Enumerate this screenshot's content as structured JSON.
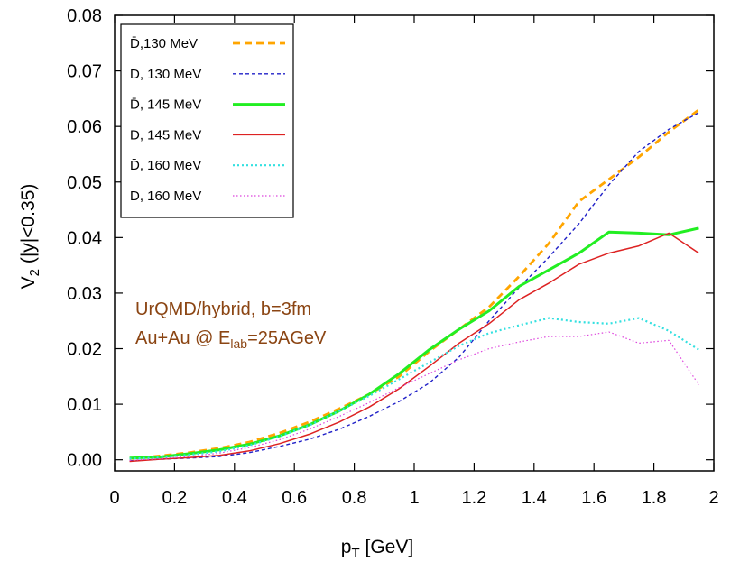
{
  "chart_data": {
    "type": "line",
    "title": "",
    "xlabel": "p",
    "xlabel_sub": "T",
    "xlabel_unit": " [GeV]",
    "ylabel": "V",
    "ylabel_sub": "2",
    "ylabel_rest": " (|y|<0.35)",
    "xlim": [
      0,
      2
    ],
    "ylim": [
      -0.002,
      0.08
    ],
    "xticks": [
      0,
      0.2,
      0.4,
      0.6,
      0.8,
      1,
      1.2,
      1.4,
      1.6,
      1.8,
      2
    ],
    "xtick_labels": [
      "0",
      "0.2",
      "0.4",
      "0.6",
      "0.8",
      "1",
      "1.2",
      "1.4",
      "1.6",
      "1.8",
      "2"
    ],
    "yticks": [
      0,
      0.01,
      0.02,
      0.03,
      0.04,
      0.05,
      0.06,
      0.07,
      0.08
    ],
    "ytick_labels": [
      "0.00",
      "0.01",
      "0.02",
      "0.03",
      "0.04",
      "0.05",
      "0.06",
      "0.07",
      "0.08"
    ],
    "grid": false,
    "legend_position": "top-left",
    "annotation": {
      "line1": "UrQMD/hybrid, b=3fm",
      "line2_prefix": "Au+Au @ E",
      "line2_sub": "lab",
      "line2_suffix": "=25AGeV",
      "color": "#8b4513"
    },
    "series": [
      {
        "name": "D̄,130 MeV",
        "color": "#ffa500",
        "width": 2.8,
        "dash": "8,5",
        "x": [
          0.05,
          0.15,
          0.25,
          0.35,
          0.45,
          0.55,
          0.65,
          0.75,
          0.85,
          0.95,
          1.05,
          1.15,
          1.25,
          1.35,
          1.45,
          1.55,
          1.65,
          1.75,
          1.85,
          1.95
        ],
        "y": [
          0.0002,
          0.0007,
          0.0013,
          0.0021,
          0.0032,
          0.0048,
          0.0068,
          0.0092,
          0.0118,
          0.015,
          0.0195,
          0.0235,
          0.0275,
          0.033,
          0.039,
          0.0465,
          0.0505,
          0.0545,
          0.059,
          0.063
        ]
      },
      {
        "name": "D, 130 MeV",
        "color": "#2020c8",
        "width": 1.4,
        "dash": "4,3",
        "x": [
          0.05,
          0.15,
          0.25,
          0.35,
          0.45,
          0.55,
          0.65,
          0.75,
          0.85,
          0.95,
          1.05,
          1.15,
          1.25,
          1.35,
          1.45,
          1.55,
          1.65,
          1.75,
          1.85,
          1.95
        ],
        "y": [
          -0.0002,
          0.0001,
          0.0003,
          0.0006,
          0.0013,
          0.0024,
          0.0037,
          0.0055,
          0.0078,
          0.0105,
          0.0138,
          0.0185,
          0.025,
          0.031,
          0.0365,
          0.0425,
          0.0495,
          0.0555,
          0.0595,
          0.0625
        ]
      },
      {
        "name": "D̄, 145 MeV",
        "color": "#22ee22",
        "width": 3.0,
        "dash": "",
        "x": [
          0.05,
          0.15,
          0.25,
          0.35,
          0.45,
          0.55,
          0.65,
          0.75,
          0.85,
          0.95,
          1.05,
          1.15,
          1.25,
          1.35,
          1.45,
          1.55,
          1.65,
          1.75,
          1.85,
          1.95
        ],
        "y": [
          0.0003,
          0.0005,
          0.0011,
          0.0018,
          0.0028,
          0.0043,
          0.0063,
          0.0088,
          0.0118,
          0.0155,
          0.0198,
          0.0235,
          0.0268,
          0.0312,
          0.0342,
          0.0372,
          0.041,
          0.0408,
          0.0405,
          0.0417
        ]
      },
      {
        "name": "D, 145 MeV",
        "color": "#dd2222",
        "width": 1.5,
        "dash": "",
        "x": [
          0.05,
          0.15,
          0.25,
          0.35,
          0.45,
          0.55,
          0.65,
          0.75,
          0.85,
          0.95,
          1.05,
          1.15,
          1.25,
          1.35,
          1.45,
          1.55,
          1.65,
          1.75,
          1.85,
          1.95
        ],
        "y": [
          -0.0003,
          0.0001,
          0.0004,
          0.0008,
          0.0016,
          0.0029,
          0.0046,
          0.0068,
          0.0095,
          0.0128,
          0.0168,
          0.021,
          0.0245,
          0.0288,
          0.0318,
          0.0352,
          0.0372,
          0.0385,
          0.0408,
          0.0372
        ]
      },
      {
        "name": "D̄, 160 MeV",
        "color": "#33e0e0",
        "width": 2.2,
        "dash": "2,3",
        "x": [
          0.05,
          0.15,
          0.25,
          0.35,
          0.45,
          0.55,
          0.65,
          0.75,
          0.85,
          0.95,
          1.05,
          1.15,
          1.25,
          1.35,
          1.45,
          1.55,
          1.65,
          1.75,
          1.85,
          1.95
        ],
        "y": [
          0.0002,
          0.0004,
          0.0009,
          0.0015,
          0.0026,
          0.0042,
          0.0062,
          0.0088,
          0.0115,
          0.0145,
          0.0175,
          0.0205,
          0.0228,
          0.0242,
          0.0255,
          0.0248,
          0.0245,
          0.0255,
          0.0232,
          0.0198
        ]
      },
      {
        "name": "D, 160 MeV",
        "color": "#dd44dd",
        "width": 1.2,
        "dash": "1.5,2.5",
        "x": [
          0.05,
          0.15,
          0.25,
          0.35,
          0.45,
          0.55,
          0.65,
          0.75,
          0.85,
          0.95,
          1.05,
          1.15,
          1.25,
          1.35,
          1.45,
          1.55,
          1.65,
          1.75,
          1.85,
          1.95
        ],
        "y": [
          -0.0001,
          0.0002,
          0.0006,
          0.0012,
          0.0022,
          0.0036,
          0.0055,
          0.0078,
          0.0103,
          0.013,
          0.0155,
          0.018,
          0.02,
          0.0212,
          0.0222,
          0.0222,
          0.023,
          0.021,
          0.0215,
          0.0135
        ]
      }
    ]
  }
}
